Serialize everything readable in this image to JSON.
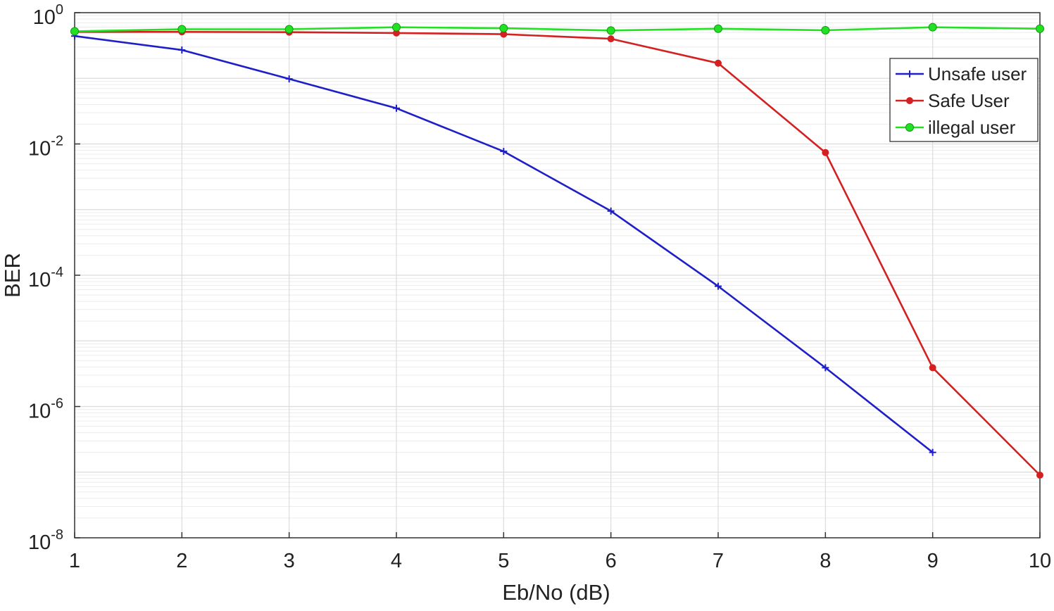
{
  "chart_data": {
    "type": "line",
    "xlabel": "Eb/No (dB)",
    "ylabel": "BER",
    "y_scale": "log",
    "xlim": [
      1,
      10
    ],
    "ylim": [
      1e-08,
      1
    ],
    "grid": true,
    "legend_position": "top-right",
    "x_ticks": [
      "1",
      "2",
      "3",
      "4",
      "5",
      "6",
      "7",
      "8",
      "9",
      "10"
    ],
    "y_ticks": [
      {
        "base": "10",
        "exp": "0",
        "value": 1
      },
      {
        "base": "10",
        "exp": "-2",
        "value": 0.01
      },
      {
        "base": "10",
        "exp": "-4",
        "value": 0.0001
      },
      {
        "base": "10",
        "exp": "-6",
        "value": 1e-06
      },
      {
        "base": "10",
        "exp": "-8",
        "value": 1e-08
      }
    ],
    "series": [
      {
        "name": "Unsafe user",
        "color": "#1f1fc8",
        "marker": "plus",
        "x": [
          1,
          2,
          3,
          4,
          5,
          6,
          7,
          8,
          9
        ],
        "y": [
          0.44,
          0.27,
          0.098,
          0.035,
          0.0077,
          0.00095,
          6.8e-05,
          3.9e-06,
          2e-07
        ]
      },
      {
        "name": "Safe User",
        "color": "#d42020",
        "marker": "dot",
        "x": [
          1,
          2,
          3,
          4,
          5,
          6,
          7,
          8,
          9,
          10
        ],
        "y": [
          0.51,
          0.51,
          0.505,
          0.49,
          0.47,
          0.4,
          0.17,
          0.0074,
          3.9e-06,
          9e-08
        ]
      },
      {
        "name": "illegal user",
        "color": "#22e022",
        "marker": "circle",
        "x": [
          1,
          2,
          3,
          4,
          5,
          6,
          7,
          8,
          9,
          10
        ],
        "y": [
          0.52,
          0.56,
          0.56,
          0.6,
          0.58,
          0.535,
          0.57,
          0.54,
          0.6,
          0.57
        ]
      }
    ]
  }
}
